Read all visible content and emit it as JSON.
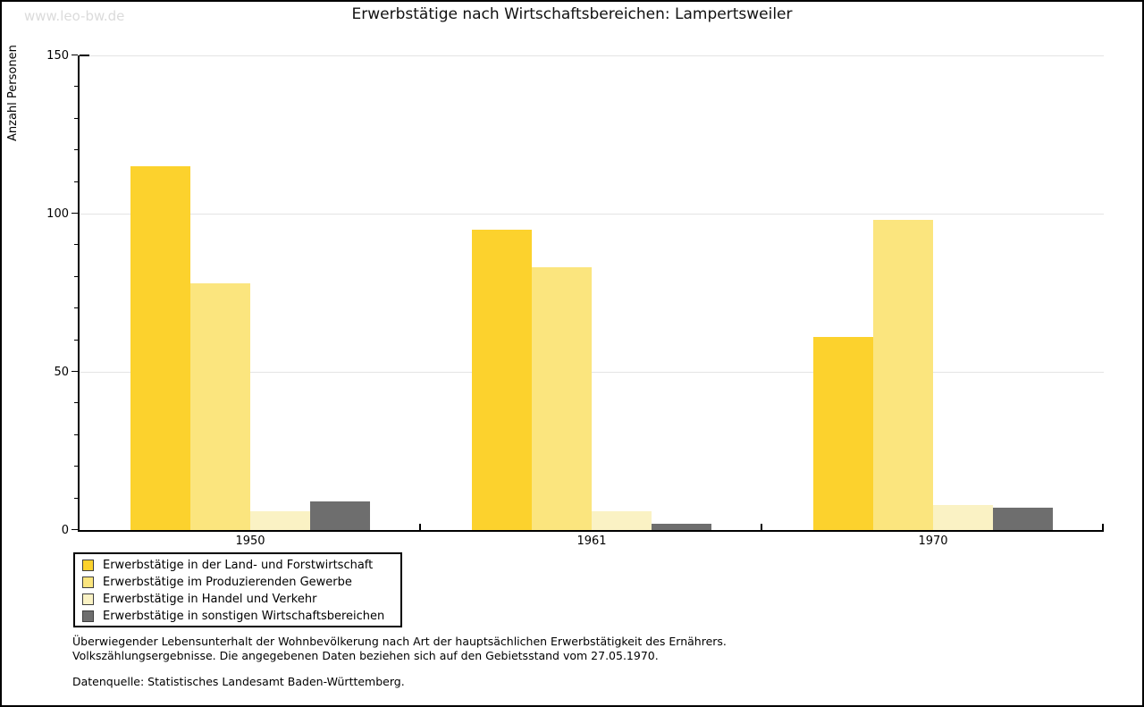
{
  "page": {
    "watermark": "www.leo-bw.de",
    "title": "Erwerbstätige nach Wirtschaftsbereichen: Lampertsweiler"
  },
  "chart_data": {
    "type": "bar",
    "title": "Erwerbstätige nach Wirtschaftsbereichen: Lampertsweiler",
    "xlabel": "",
    "ylabel": "Anzahl Personen",
    "ylim": [
      0,
      150
    ],
    "yticks": [
      0,
      50,
      100,
      150
    ],
    "minor_tick_step": 10,
    "grid": true,
    "legend_position": "bottom-left",
    "categories": [
      "1950",
      "1961",
      "1970"
    ],
    "series": [
      {
        "name": "Erwerbstätige in der Land- und Forstwirtschaft",
        "color": "#fcd22d",
        "values": [
          115,
          95,
          61
        ]
      },
      {
        "name": "Erwerbstätige im Produzierenden Gewerbe",
        "color": "#fbe57e",
        "values": [
          78,
          83,
          98
        ]
      },
      {
        "name": "Erwerbstätige in Handel und Verkehr",
        "color": "#faf2c4",
        "values": [
          6,
          6,
          8
        ]
      },
      {
        "name": "Erwerbstätige in sonstigen Wirtschaftsbereichen",
        "color": "#6e6e6e",
        "values": [
          9,
          2,
          7
        ]
      }
    ]
  },
  "footer": {
    "line1": "Überwiegender Lebensunterhalt der Wohnbevölkerung nach Art der hauptsächlichen Erwerbstätigkeit des Ernährers.",
    "line2": "Volkszählungsergebnisse. Die angegebenen Daten beziehen sich auf den Gebietsstand vom 27.05.1970.",
    "source": "Datenquelle: Statistisches Landesamt Baden-Württemberg."
  }
}
